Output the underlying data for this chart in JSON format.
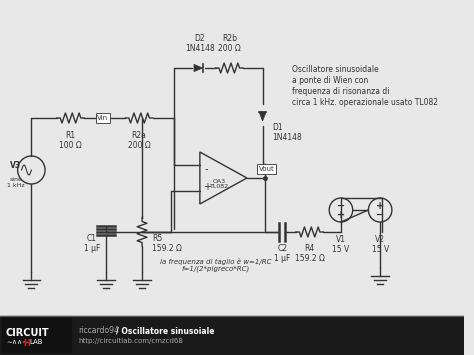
{
  "bg_color": "#e8e8e8",
  "footer_bg": "#1a1a1a",
  "wire_color": "#333333",
  "component_color": "#333333",
  "text_color": "#333333",
  "footer_text_color": "#cccccc",
  "highlight_color": "#ffffff",
  "title": "Oscillatore sinusoidale",
  "circuit_title_line1": "Oscillatore sinusoidale",
  "circuit_title_line2": "a ponte di Wien con",
  "circuit_title_line3": "frequenza di risonanza di",
  "circuit_title_line4": "circa 1 kHz. operazionale usato TL082",
  "footer_author": "riccardo94",
  "footer_circuit": "/ Oscillatore sinusoiale",
  "footer_url": "http://circuitlab.com/cmzcd68",
  "label_V3": "V3",
  "label_V3_sub": "sine\n1 kHz",
  "label_R1": "R1\n100 Ω",
  "label_R2a": "R2a\n200 Ω",
  "label_R2b": "R2b\n200 Ω",
  "label_D1": "D1\n1N4148",
  "label_D2": "D2\n1N4148",
  "label_OA3": "OA3\nTL082",
  "label_Vout": "Vout",
  "label_R4": "R4\n159.2 Ω",
  "label_R5": "R5\n159.2 Ω",
  "label_C1": "C1\n1 μF",
  "label_C2": "C2\n1 μF",
  "label_V1": "V1\n15 V",
  "label_V2": "V2\n15 V",
  "label_Vin": "Vin",
  "freq_label": "la frequenza di taglio è w=1/RC\nf=1/(2*pigreco*RC)",
  "circuit_lab_text": "CIRCUIT\n∼∧∧∼ LAB"
}
